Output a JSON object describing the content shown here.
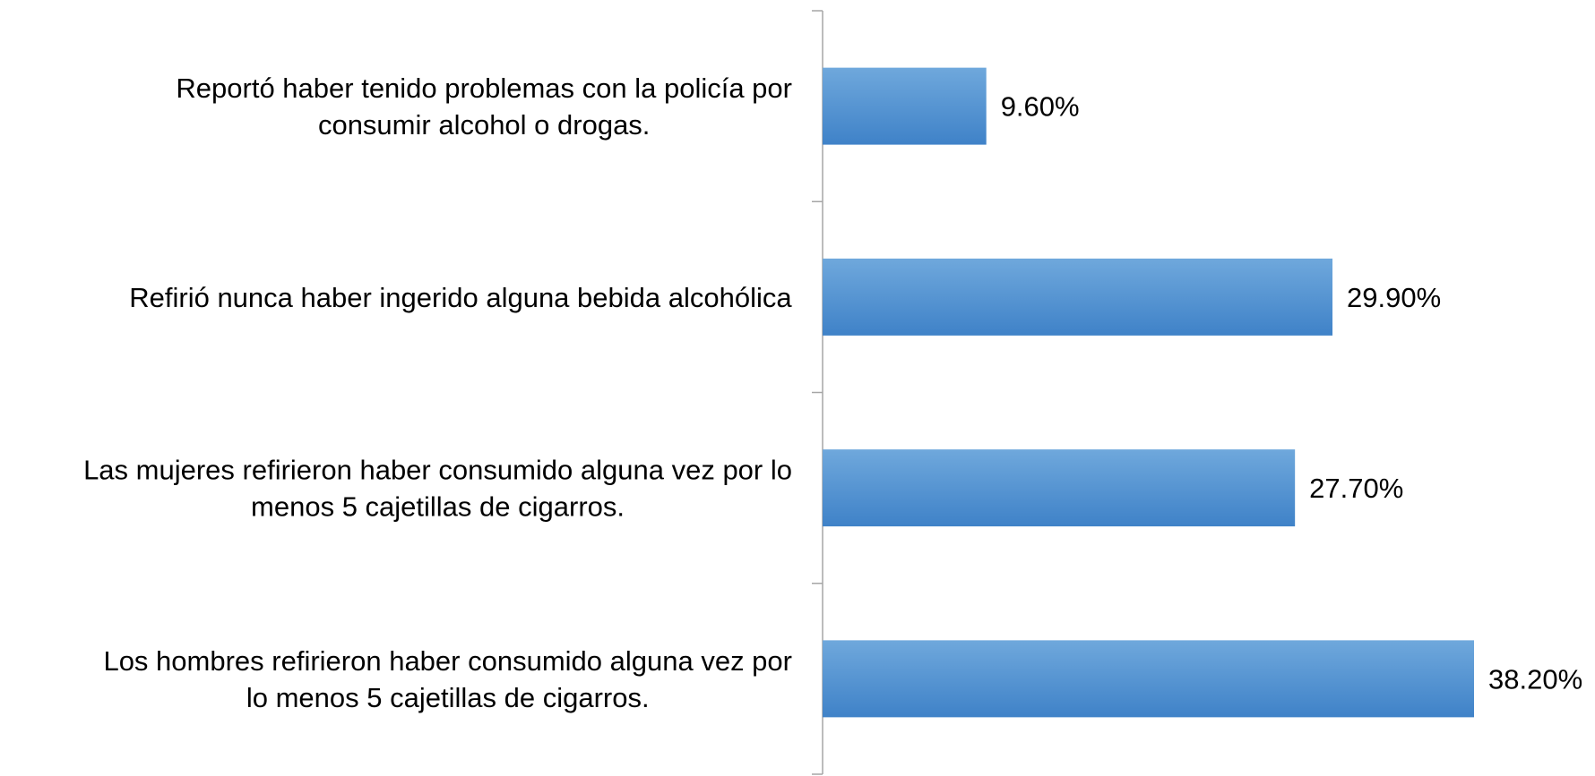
{
  "chart_data": {
    "type": "bar",
    "orientation": "horizontal",
    "categories": [
      [
        "Reportó haber tenido problemas con la policía por",
        "consumir alcohol o drogas."
      ],
      [
        "Refirió nunca haber ingerido alguna bebida alcohólica"
      ],
      [
        "Las mujeres refirieron haber consumido alguna vez por lo",
        "menos 5 cajetillas de cigarros."
      ],
      [
        "Los hombres refirieron haber consumido alguna vez por",
        "lo menos 5 cajetillas de cigarros."
      ]
    ],
    "values": [
      9.6,
      29.9,
      27.7,
      38.2
    ],
    "value_labels": [
      "9.60%",
      "29.90%",
      "27.70%",
      "38.20%"
    ],
    "xlim": [
      0,
      40
    ],
    "title": "",
    "xlabel": "",
    "ylabel": "",
    "grid": false,
    "legend": "none",
    "colors": {
      "bar_top": "#6fa8dc",
      "bar_bottom": "#3f82c8",
      "axis": "#a6a6a6",
      "text": "#000000"
    }
  }
}
